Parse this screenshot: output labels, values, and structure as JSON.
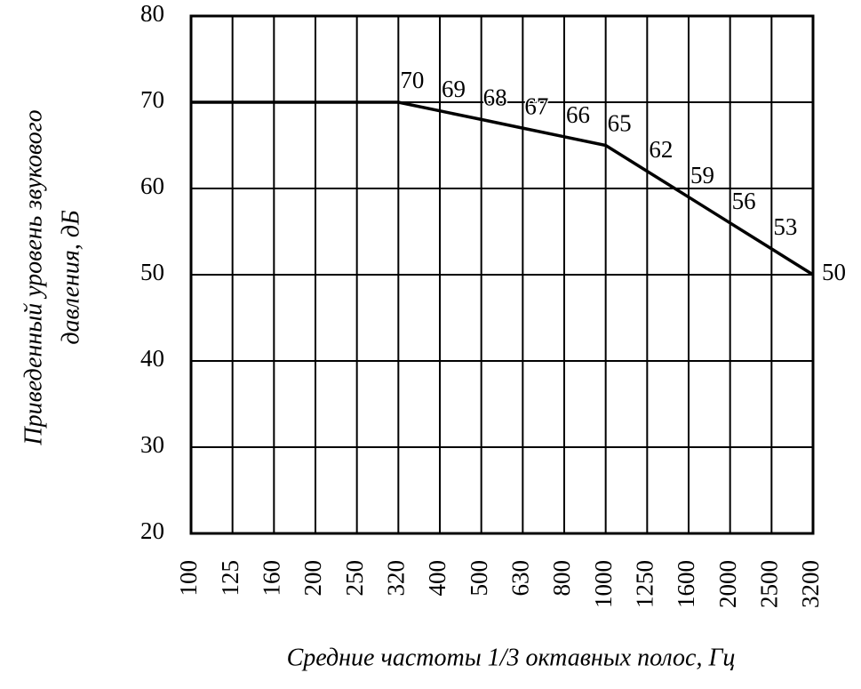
{
  "chart_data": {
    "type": "line",
    "xlabel": "Средние частоты 1/3 октавных полос, Гц",
    "ylabel": [
      "Приведенный уровень звукового",
      "давления, дБ"
    ],
    "categories": [
      "100",
      "125",
      "160",
      "200",
      "250",
      "320",
      "400",
      "500",
      "630",
      "800",
      "1000",
      "1250",
      "1600",
      "2000",
      "2500",
      "3200"
    ],
    "values": [
      70,
      70,
      70,
      70,
      70,
      70,
      69,
      68,
      67,
      66,
      65,
      62,
      59,
      56,
      53,
      50
    ],
    "value_labels": [
      null,
      null,
      null,
      null,
      null,
      "70",
      "69",
      "68",
      "67",
      "66",
      "65",
      "62",
      "59",
      "56",
      "53",
      "50"
    ],
    "color": "#000000",
    "ylim": [
      20,
      80
    ],
    "yticks": [
      20,
      30,
      40,
      50,
      60,
      70,
      80
    ],
    "grid": true
  }
}
